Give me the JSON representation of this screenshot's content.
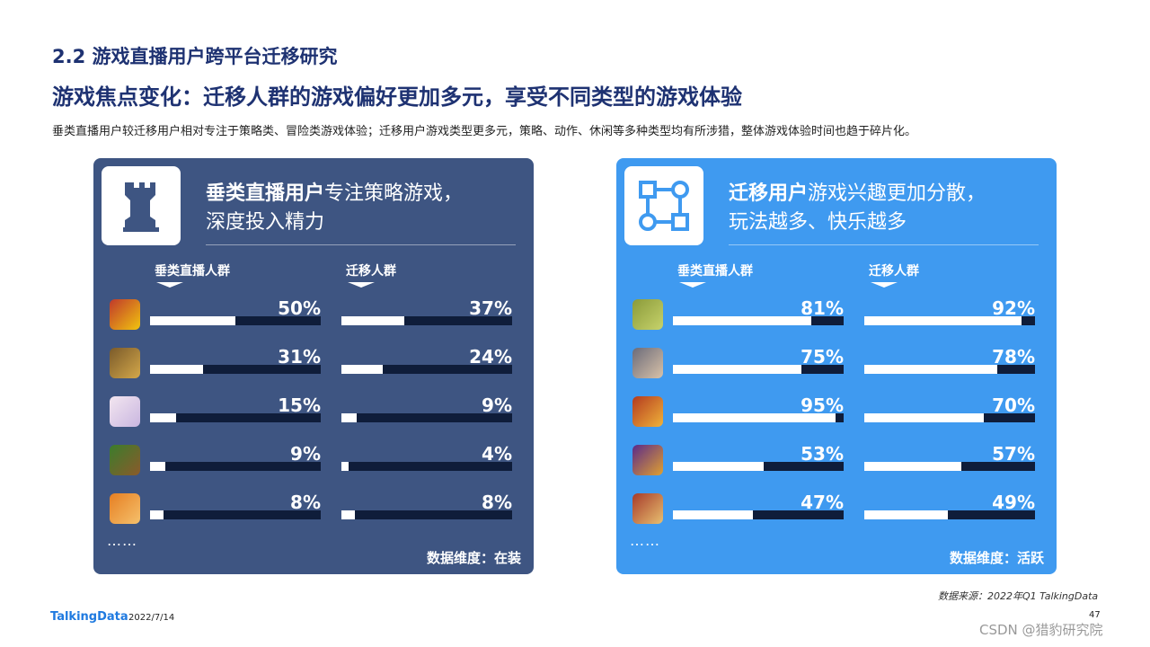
{
  "section_title": "2.2 游戏直播用户跨平台迁移研究",
  "main_heading": "游戏焦点变化：迁移人群的游戏偏好更加多元，享受不同类型的游戏体验",
  "description": "垂类直播用户较迁移用户相对专注于策略类、冒险类游戏体验；迁移用户游戏类型更多元，策略、动作、休闲等多种类型均有所涉猎，整体游戏体验时间也趋于碎片化。",
  "left_panel": {
    "heading_bold": "垂类直播用户",
    "heading_rest": "专注策略游戏，",
    "heading_line2": "深度投入精力",
    "icon": "chess-rook-icon",
    "group_a_label": "垂类直播人群",
    "group_b_label": "迁移人群",
    "rows": [
      {
        "icon": "game-icon-1",
        "a_label": "50%",
        "a": 50,
        "b_label": "37%",
        "b": 37
      },
      {
        "icon": "game-icon-2",
        "a_label": "31%",
        "a": 31,
        "b_label": "24%",
        "b": 24
      },
      {
        "icon": "game-icon-3",
        "a_label": "15%",
        "a": 15,
        "b_label": "9%",
        "b": 9
      },
      {
        "icon": "game-icon-4",
        "a_label": "9%",
        "a": 9,
        "b_label": "4%",
        "b": 4
      },
      {
        "icon": "game-icon-5",
        "a_label": "8%",
        "a": 8,
        "b_label": "8%",
        "b": 8
      }
    ],
    "ellipsis": "……",
    "dimension": "数据维度：在装",
    "color": "#3e5582"
  },
  "right_panel": {
    "heading_bold": "迁移用户",
    "heading_rest": "游戏兴趣更加分散，",
    "heading_line2": "玩法越多、快乐越多",
    "icon": "flow-diagram-icon",
    "group_a_label": "垂类直播人群",
    "group_b_label": "迁移人群",
    "rows": [
      {
        "icon": "game-icon-6",
        "a_label": "81%",
        "a": 81,
        "b_label": "92%",
        "b": 92
      },
      {
        "icon": "game-icon-7",
        "a_label": "75%",
        "a": 75,
        "b_label": "78%",
        "b": 78
      },
      {
        "icon": "game-icon-8",
        "a_label": "95%",
        "a": 95,
        "b_label": "70%",
        "b": 70
      },
      {
        "icon": "game-icon-9",
        "a_label": "53%",
        "a": 53,
        "b_label": "57%",
        "b": 57
      },
      {
        "icon": "game-icon-10",
        "a_label": "47%",
        "a": 47,
        "b_label": "49%",
        "b": 49
      }
    ],
    "ellipsis": "……",
    "dimension": "数据维度：活跃",
    "color": "#3f9af0"
  },
  "footer": {
    "source": "数据来源：2022年Q1 TalkingData",
    "logo": "TalkingData",
    "date": "2022/7/14",
    "page": "47",
    "watermark": "CSDN @猎豹研究院"
  }
}
